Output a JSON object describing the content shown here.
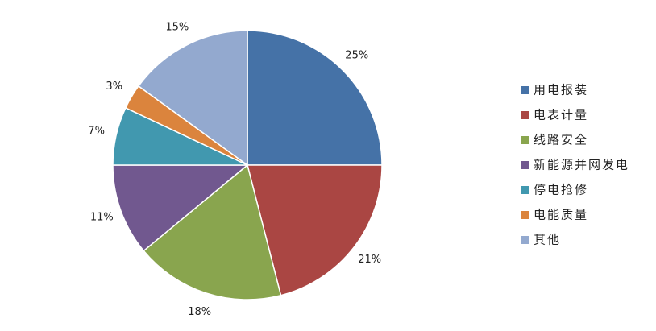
{
  "chart_data": {
    "type": "pie",
    "categories": [
      "用电报装",
      "电表计量",
      "线路安全",
      "新能源并网发电",
      "停电抢修",
      "电能质量",
      "其他"
    ],
    "values": [
      25,
      21,
      18,
      11,
      7,
      3,
      15
    ],
    "value_labels": [
      "25%",
      "21%",
      "18%",
      "11%",
      "7%",
      "3%",
      "15%"
    ],
    "colors": [
      "#4572a7",
      "#aa4643",
      "#89a54e",
      "#71588f",
      "#4198af",
      "#db843d",
      "#93a9cf"
    ],
    "legend": "right"
  }
}
